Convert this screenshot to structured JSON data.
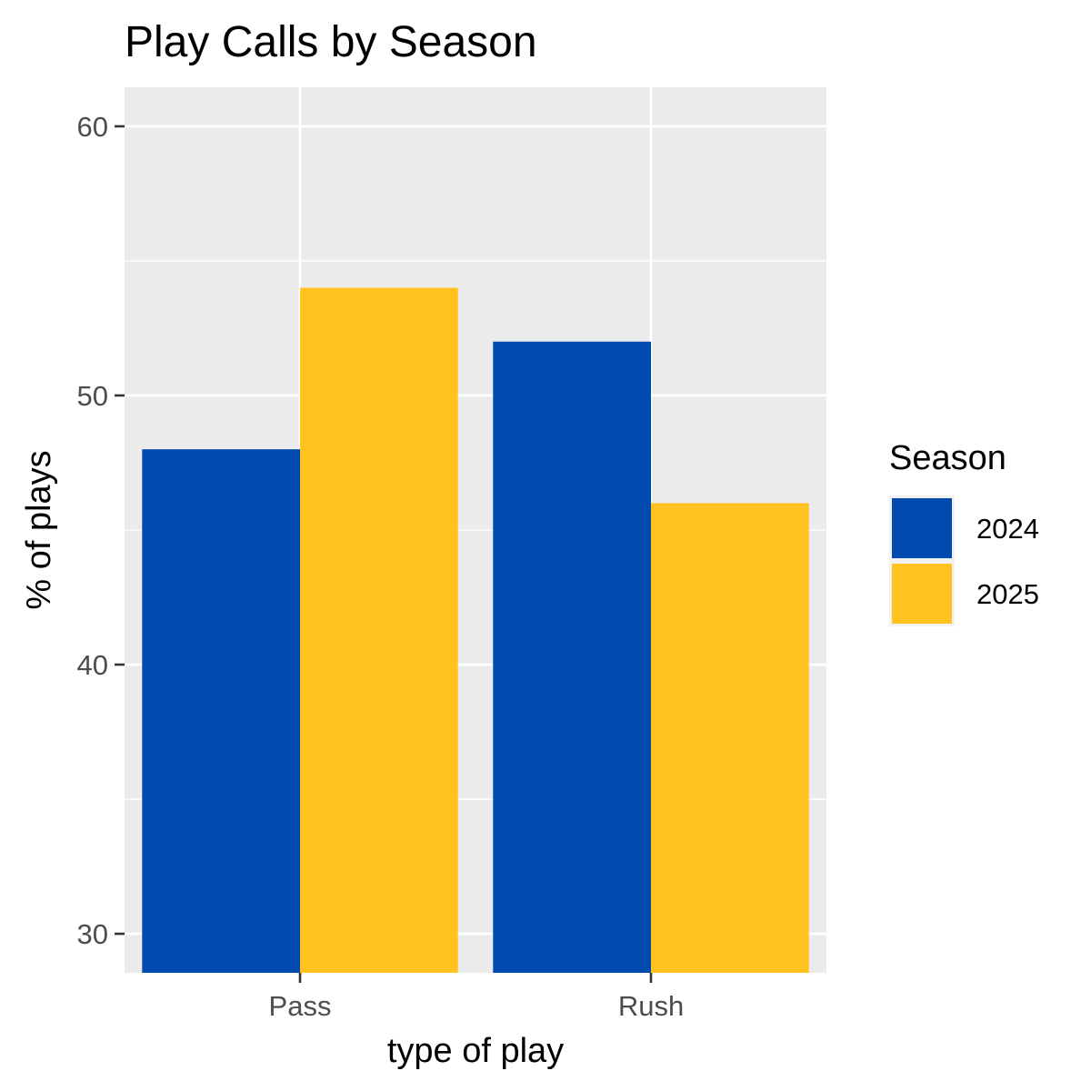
{
  "chart_data": {
    "type": "bar",
    "title": "Play Calls by Season",
    "xlabel": "type of play",
    "ylabel": "% of plays",
    "categories": [
      "Pass",
      "Rush"
    ],
    "series": [
      {
        "name": "2024",
        "values": [
          48,
          52
        ]
      },
      {
        "name": "2025",
        "values": [
          54,
          46
        ]
      }
    ],
    "ylim": [
      28.55,
      61.45
    ],
    "yticks": [
      30,
      40,
      50,
      60
    ],
    "ytick_labels": [
      "30",
      "40",
      "50",
      "60"
    ],
    "grid": true,
    "legend": {
      "title": "Season",
      "position": "right"
    },
    "colors": {
      "2024": "#004BAD",
      "2025": "#FFC21F",
      "panel_background": "#EBEBEB",
      "grid_major": "#FFFFFF"
    }
  }
}
